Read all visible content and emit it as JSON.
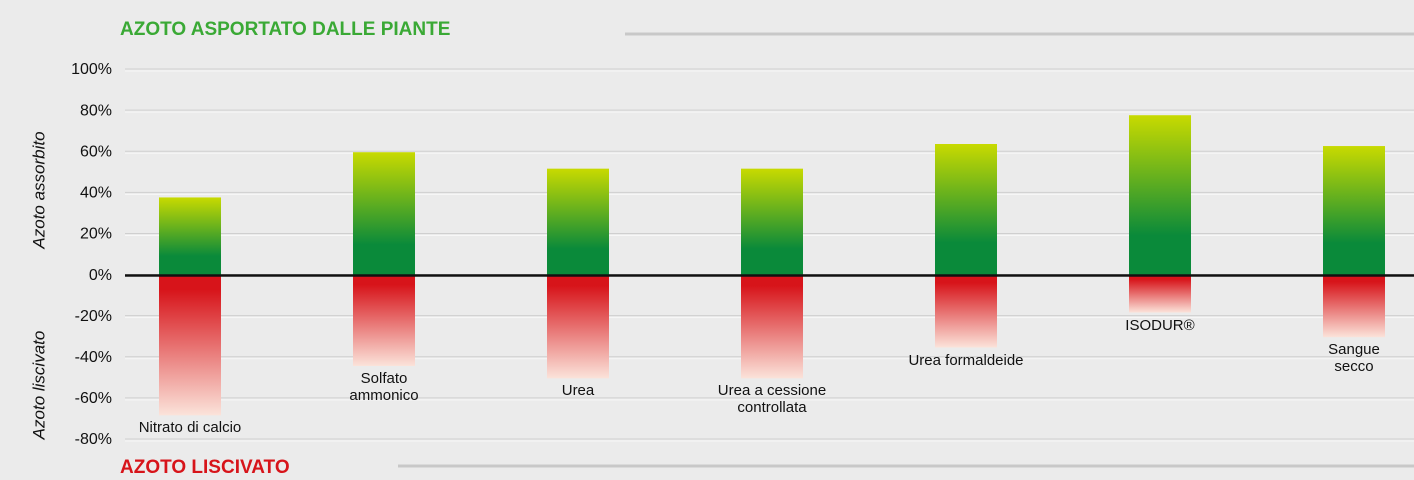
{
  "chart_data": {
    "type": "bar",
    "categories": [
      "Nitrato di calcio",
      "Solfato\nammonico",
      "Urea",
      "Urea a cessione\ncontrollata",
      "Urea formaldeide",
      "ISODUR®",
      "Sangue\nsecco"
    ],
    "series": [
      {
        "name": "AZOTO ASPORTATO DALLE PIANTE",
        "color": "#0a8a3a",
        "values": [
          38,
          60,
          52,
          52,
          64,
          78,
          63
        ]
      },
      {
        "name": "AZOTO LISCIVATO",
        "color": "#d7141a",
        "values": [
          -68,
          -44,
          -50,
          -50,
          -35,
          -18,
          -30
        ]
      }
    ],
    "ylabel_top": "Azoto assorbito",
    "ylabel_bottom": "Azoto liscivato",
    "ylim": [
      -80,
      100
    ],
    "yticks": [
      {
        "value": -80,
        "label": "-80%"
      },
      {
        "value": -60,
        "label": "-60%"
      },
      {
        "value": -40,
        "label": "-40%"
      },
      {
        "value": -20,
        "label": "-20%"
      },
      {
        "value": 0,
        "label": "0%"
      },
      {
        "value": 20,
        "label": "20%"
      },
      {
        "value": 40,
        "label": "40%"
      },
      {
        "value": 60,
        "label": "60%"
      },
      {
        "value": 80,
        "label": "80%"
      },
      {
        "value": 100,
        "label": "100%"
      }
    ],
    "grid": true
  }
}
